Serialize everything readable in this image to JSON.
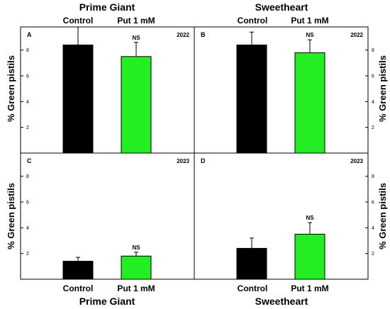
{
  "figure": {
    "top_titles": [
      "Prime Giant",
      "Sweetheart"
    ],
    "bottom_titles": [
      "Prime Giant",
      "Sweetheart"
    ],
    "ylabel": "% Green pistils",
    "categories": [
      "Control",
      "Put 1 mM"
    ]
  },
  "chart_data": [
    {
      "type": "bar",
      "panel": "A",
      "cultivar": "Prime Giant",
      "year": "2022",
      "categories": [
        "Control",
        "Put 1 mM"
      ],
      "values": [
        8.4,
        7.5
      ],
      "errors": [
        1.4,
        1.1
      ],
      "annotations": [
        "",
        "NS"
      ],
      "colors": [
        "#000000",
        "#22ee22"
      ],
      "ylim": [
        0,
        9.8
      ],
      "yticks": [
        2,
        4,
        6,
        8
      ],
      "ylabel": "% Green pistils"
    },
    {
      "type": "bar",
      "panel": "B",
      "cultivar": "Sweetheart",
      "year": "2022",
      "categories": [
        "Control",
        "Put 1 mM"
      ],
      "values": [
        8.4,
        7.8
      ],
      "errors": [
        1.0,
        1.0
      ],
      "annotations": [
        "",
        "NS"
      ],
      "colors": [
        "#000000",
        "#22ee22"
      ],
      "ylim": [
        0,
        9.8
      ],
      "yticks": [
        2,
        4,
        6,
        8
      ],
      "ylabel": "% Green pistils"
    },
    {
      "type": "bar",
      "panel": "C",
      "cultivar": "Prime Giant",
      "year": "2023",
      "categories": [
        "Control",
        "Put 1 mM"
      ],
      "values": [
        1.4,
        1.8
      ],
      "errors": [
        0.3,
        0.3
      ],
      "annotations": [
        "",
        "NS"
      ],
      "colors": [
        "#000000",
        "#22ee22"
      ],
      "ylim": [
        0,
        9.8
      ],
      "yticks": [
        2,
        4,
        6,
        8
      ],
      "ylabel": "% Green pistils"
    },
    {
      "type": "bar",
      "panel": "D",
      "cultivar": "Sweetheart",
      "year": "2023",
      "categories": [
        "Control",
        "Put 1 mM"
      ],
      "values": [
        2.4,
        3.5
      ],
      "errors": [
        0.8,
        0.9
      ],
      "annotations": [
        "",
        "NS"
      ],
      "colors": [
        "#000000",
        "#22ee22"
      ],
      "ylim": [
        0,
        9.8
      ],
      "yticks": [
        2,
        4,
        6,
        8
      ],
      "ylabel": "% Green pistils"
    }
  ]
}
